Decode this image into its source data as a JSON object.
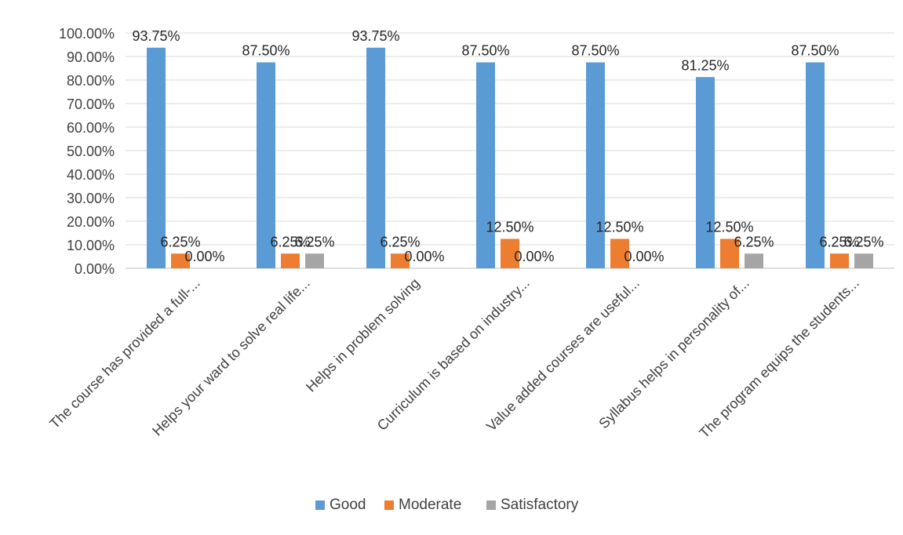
{
  "chart_data": {
    "type": "bar",
    "categories": [
      "The course has provided a full-...",
      "Helps your ward to solve real life...",
      "Helps in problem solving",
      "Curriculum is based on industry...",
      "Value added courses are useful...",
      "Syllabus helps in personality of...",
      "The program equips the students..."
    ],
    "series": [
      {
        "name": "Good",
        "color": "#5B9BD5",
        "values": [
          93.75,
          87.5,
          93.75,
          87.5,
          87.5,
          81.25,
          87.5
        ],
        "labels": [
          "93.75%",
          "87.50%",
          "93.75%",
          "87.50%",
          "87.50%",
          "81.25%",
          "87.50%"
        ]
      },
      {
        "name": "Moderate",
        "color": "#ED7D31",
        "values": [
          6.25,
          6.25,
          6.25,
          12.5,
          12.5,
          12.5,
          6.25
        ],
        "labels": [
          "6.25%",
          "6.25%",
          "6.25%",
          "12.50%",
          "12.50%",
          "12.50%",
          "6.25%"
        ]
      },
      {
        "name": "Satisfactory",
        "color": "#A5A5A5",
        "values": [
          0,
          6.25,
          0,
          0,
          0,
          6.25,
          6.25
        ],
        "labels": [
          "0.00%",
          "6.25%",
          "0.00%",
          "0.00%",
          "0.00%",
          "6.25%",
          "6.25%"
        ]
      }
    ],
    "yticks": [
      "0.00%",
      "10.00%",
      "20.00%",
      "30.00%",
      "40.00%",
      "50.00%",
      "60.00%",
      "70.00%",
      "80.00%",
      "90.00%",
      "100.00%"
    ],
    "ylim": [
      0,
      100
    ],
    "title": "",
    "xlabel": "",
    "ylabel": "",
    "grid": true,
    "legend": "bottom"
  }
}
